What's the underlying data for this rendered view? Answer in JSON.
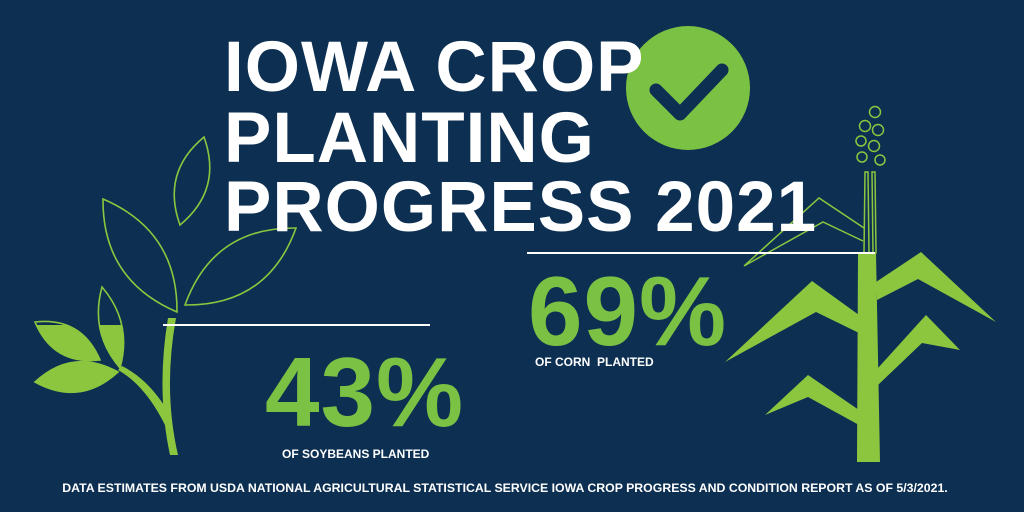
{
  "title": {
    "line1": "IOWA CROP",
    "line2": "PLANTING",
    "line3": "PROGRESS 2021"
  },
  "corn": {
    "value": "69%",
    "label": "OF CORN  PLANTED",
    "percent": 69
  },
  "soybeans": {
    "value": "43%",
    "label": "OF SOYBEANS PLANTED",
    "percent": 43
  },
  "footer": "DATA ESTIMATES FROM USDA NATIONAL AGRICULTURAL STATISTICAL SERVICE IOWA CROP PROGRESS AND CONDITION REPORT AS OF 5/3/2021.",
  "icons": {
    "check": "check-circle-icon",
    "soybean": "soybean-plant-icon",
    "corn": "corn-stalk-icon"
  },
  "colors": {
    "background": "#0c2f52",
    "accent": "#7bc143",
    "text": "#ffffff"
  }
}
